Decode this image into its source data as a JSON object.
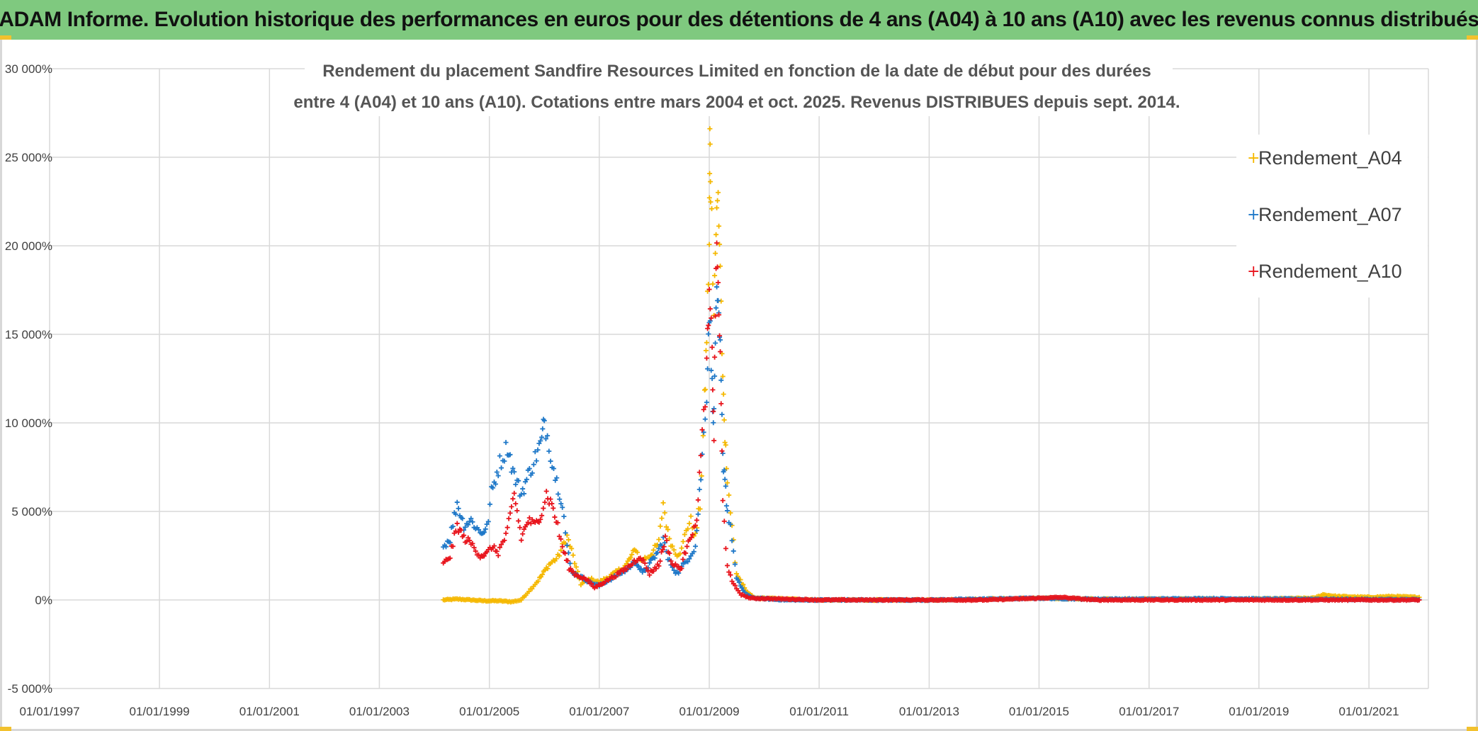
{
  "header": {
    "title": "ADAM Informe. Evolution historique des performances en euros pour des détentions de 4 ans (A04) à 10 ans (A10) avec les revenus connus distribués"
  },
  "colors": {
    "header_bg": "#7fc97f",
    "A04": "#f5b800",
    "A07": "#1f78c8",
    "A10": "#e8141c",
    "grid": "#d9d9d9"
  },
  "chart_data": {
    "type": "scatter",
    "title_lines": [
      "Rendement du placement Sandfire Resources Limited en fonction de la date de début pour des durées",
      "entre 4 (A04) et 10 ans (A10). Cotations entre mars 2004 et oct. 2025. Revenus DISTRIBUES depuis sept. 2014."
    ],
    "xlabel": "",
    "ylabel": "",
    "x_range": [
      "1997-01-01",
      "2022-01-31"
    ],
    "x_ticks": [
      "01/01/1997",
      "01/01/1999",
      "01/01/2001",
      "01/01/2003",
      "01/01/2005",
      "01/01/2007",
      "01/01/2009",
      "01/01/2011",
      "01/01/2013",
      "01/01/2015",
      "01/01/2017",
      "01/01/2019",
      "01/01/2021"
    ],
    "y_range": [
      -5000,
      30000
    ],
    "y_ticks": [
      "-5 000%",
      "0%",
      "5 000%",
      "10 000%",
      "15 000%",
      "20 000%",
      "25 000%",
      "30 000%"
    ],
    "y_tick_values": [
      -5000,
      0,
      5000,
      10000,
      15000,
      20000,
      25000,
      30000
    ],
    "grid": true,
    "legend_position": "top-right",
    "series": [
      {
        "name": "Rendement_A04",
        "color": "#f5b800",
        "points": [
          [
            "2004-03-01",
            0
          ],
          [
            "2004-06-01",
            50
          ],
          [
            "2004-09-01",
            0
          ],
          [
            "2004-12-01",
            -50
          ],
          [
            "2005-03-01",
            -50
          ],
          [
            "2005-06-01",
            -100
          ],
          [
            "2005-08-01",
            0
          ],
          [
            "2005-10-01",
            600
          ],
          [
            "2005-12-01",
            1200
          ],
          [
            "2006-02-01",
            2000
          ],
          [
            "2006-04-01",
            2400
          ],
          [
            "2006-05-01",
            3000
          ],
          [
            "2006-06-01",
            3600
          ],
          [
            "2006-07-01",
            2800
          ],
          [
            "2006-08-01",
            1800
          ],
          [
            "2006-09-01",
            900
          ],
          [
            "2006-11-01",
            1200
          ],
          [
            "2007-01-01",
            1000
          ],
          [
            "2007-03-01",
            1300
          ],
          [
            "2007-05-01",
            1600
          ],
          [
            "2007-07-01",
            2000
          ],
          [
            "2007-09-01",
            2900
          ],
          [
            "2007-10-01",
            2200
          ],
          [
            "2007-12-01",
            2500
          ],
          [
            "2008-02-01",
            3200
          ],
          [
            "2008-03-01",
            5500
          ],
          [
            "2008-04-01",
            3800
          ],
          [
            "2008-05-01",
            3000
          ],
          [
            "2008-06-01",
            2600
          ],
          [
            "2008-07-01",
            2800
          ],
          [
            "2008-08-01",
            4000
          ],
          [
            "2008-09-01",
            4500
          ],
          [
            "2008-10-01",
            3500
          ],
          [
            "2008-11-01",
            5500
          ],
          [
            "2008-12-01",
            11000
          ],
          [
            "2008-12-15",
            15000
          ],
          [
            "2009-01-01",
            20000
          ],
          [
            "2009-01-05",
            26000
          ],
          [
            "2009-01-10",
            23500
          ],
          [
            "2009-02-01",
            17000
          ],
          [
            "2009-02-15",
            21000
          ],
          [
            "2009-03-01",
            22800
          ],
          [
            "2009-03-15",
            19000
          ],
          [
            "2009-04-01",
            12000
          ],
          [
            "2009-04-15",
            9000
          ],
          [
            "2009-05-01",
            7000
          ],
          [
            "2009-06-01",
            4000
          ],
          [
            "2009-07-01",
            1500
          ],
          [
            "2009-09-01",
            500
          ],
          [
            "2009-11-01",
            100
          ],
          [
            "2010-01-01",
            100
          ],
          [
            "2010-06-01",
            50
          ],
          [
            "2011-01-01",
            0
          ],
          [
            "2012-01-01",
            0
          ],
          [
            "2013-01-01",
            0
          ],
          [
            "2014-01-01",
            50
          ],
          [
            "2015-01-01",
            100
          ],
          [
            "2016-01-01",
            50
          ],
          [
            "2017-01-01",
            50
          ],
          [
            "2018-01-01",
            50
          ],
          [
            "2019-01-01",
            50
          ],
          [
            "2020-01-01",
            100
          ],
          [
            "2020-03-01",
            300
          ],
          [
            "2020-06-01",
            200
          ],
          [
            "2021-01-01",
            150
          ],
          [
            "2021-06-01",
            200
          ],
          [
            "2021-12-01",
            150
          ]
        ]
      },
      {
        "name": "Rendement_A07",
        "color": "#1f78c8",
        "points": [
          [
            "2004-03-01",
            3000
          ],
          [
            "2004-04-15",
            3500
          ],
          [
            "2004-06-01",
            5500
          ],
          [
            "2004-07-15",
            4200
          ],
          [
            "2004-09-01",
            4500
          ],
          [
            "2004-11-01",
            3800
          ],
          [
            "2004-12-15",
            4000
          ],
          [
            "2005-01-15",
            6000
          ],
          [
            "2005-03-01",
            7500
          ],
          [
            "2005-05-01",
            8700
          ],
          [
            "2005-06-15",
            7000
          ],
          [
            "2005-08-01",
            6000
          ],
          [
            "2005-09-15",
            7000
          ],
          [
            "2005-11-01",
            8000
          ],
          [
            "2005-12-15",
            9000
          ],
          [
            "2006-01-01",
            10100
          ],
          [
            "2006-02-01",
            8800
          ],
          [
            "2006-03-15",
            7000
          ],
          [
            "2006-05-01",
            5500
          ],
          [
            "2006-06-01",
            3000
          ],
          [
            "2006-07-01",
            1600
          ],
          [
            "2006-09-01",
            1300
          ],
          [
            "2006-11-01",
            1000
          ],
          [
            "2007-01-01",
            800
          ],
          [
            "2007-03-01",
            1100
          ],
          [
            "2007-05-01",
            1400
          ],
          [
            "2007-07-01",
            1700
          ],
          [
            "2007-09-01",
            2200
          ],
          [
            "2007-10-15",
            1500
          ],
          [
            "2007-12-01",
            2000
          ],
          [
            "2008-02-01",
            2800
          ],
          [
            "2008-03-01",
            3500
          ],
          [
            "2008-04-01",
            2300
          ],
          [
            "2008-06-01",
            1500
          ],
          [
            "2008-08-01",
            2200
          ],
          [
            "2008-10-01",
            3000
          ],
          [
            "2008-11-15",
            8000
          ],
          [
            "2008-12-15",
            12000
          ],
          [
            "2009-01-01",
            16500
          ],
          [
            "2009-01-20",
            12000
          ],
          [
            "2009-02-01",
            10000
          ],
          [
            "2009-02-15",
            17000
          ],
          [
            "2009-03-01",
            16000
          ],
          [
            "2009-03-15",
            14000
          ],
          [
            "2009-04-01",
            8000
          ],
          [
            "2009-04-15",
            7000
          ],
          [
            "2009-05-01",
            5000
          ],
          [
            "2009-06-01",
            3500
          ],
          [
            "2009-07-01",
            1200
          ],
          [
            "2009-09-01",
            300
          ],
          [
            "2009-11-01",
            100
          ],
          [
            "2010-06-01",
            0
          ],
          [
            "2011-01-01",
            0
          ],
          [
            "2012-01-01",
            0
          ],
          [
            "2013-01-01",
            0
          ],
          [
            "2014-01-01",
            50
          ],
          [
            "2015-01-01",
            100
          ],
          [
            "2016-01-01",
            50
          ],
          [
            "2017-01-01",
            50
          ],
          [
            "2018-01-01",
            80
          ],
          [
            "2019-01-01",
            60
          ],
          [
            "2020-01-01",
            50
          ],
          [
            "2021-01-01",
            30
          ],
          [
            "2021-12-01",
            20
          ]
        ]
      },
      {
        "name": "Rendement_A10",
        "color": "#e8141c",
        "points": [
          [
            "2004-03-01",
            2000
          ],
          [
            "2004-04-15",
            2500
          ],
          [
            "2004-06-01",
            4200
          ],
          [
            "2004-07-15",
            3500
          ],
          [
            "2004-09-01",
            3200
          ],
          [
            "2004-11-01",
            2500
          ],
          [
            "2004-12-15",
            2600
          ],
          [
            "2005-01-15",
            3000
          ],
          [
            "2005-03-01",
            2700
          ],
          [
            "2005-05-01",
            3800
          ],
          [
            "2005-06-15",
            6000
          ],
          [
            "2005-08-01",
            3500
          ],
          [
            "2005-09-15",
            4500
          ],
          [
            "2005-11-01",
            4200
          ],
          [
            "2005-12-15",
            5000
          ],
          [
            "2006-01-15",
            6000
          ],
          [
            "2006-03-01",
            5200
          ],
          [
            "2006-05-01",
            3000
          ],
          [
            "2006-06-15",
            1800
          ],
          [
            "2006-08-01",
            1400
          ],
          [
            "2006-10-01",
            1200
          ],
          [
            "2006-12-01",
            700
          ],
          [
            "2007-02-01",
            1000
          ],
          [
            "2007-04-01",
            1300
          ],
          [
            "2007-06-01",
            1600
          ],
          [
            "2007-08-01",
            2000
          ],
          [
            "2007-10-01",
            2500
          ],
          [
            "2007-12-01",
            1500
          ],
          [
            "2008-02-01",
            2000
          ],
          [
            "2008-03-15",
            3500
          ],
          [
            "2008-05-01",
            2000
          ],
          [
            "2008-07-01",
            1800
          ],
          [
            "2008-08-15",
            3500
          ],
          [
            "2008-10-01",
            4000
          ],
          [
            "2008-11-15",
            9000
          ],
          [
            "2008-12-15",
            13000
          ],
          [
            "2009-01-01",
            17000
          ],
          [
            "2009-01-20",
            14000
          ],
          [
            "2009-02-01",
            9500
          ],
          [
            "2009-02-15",
            19500
          ],
          [
            "2009-03-01",
            18000
          ],
          [
            "2009-03-15",
            13500
          ],
          [
            "2009-04-01",
            5500
          ],
          [
            "2009-05-01",
            2000
          ],
          [
            "2009-06-01",
            1000
          ],
          [
            "2009-08-01",
            300
          ],
          [
            "2009-10-01",
            100
          ],
          [
            "2010-06-01",
            50
          ],
          [
            "2011-01-01",
            0
          ],
          [
            "2012-01-01",
            0
          ],
          [
            "2013-01-01",
            0
          ],
          [
            "2014-01-01",
            0
          ],
          [
            "2015-01-01",
            100
          ],
          [
            "2015-06-01",
            150
          ],
          [
            "2016-01-01",
            0
          ],
          [
            "2017-01-01",
            0
          ],
          [
            "2018-01-01",
            0
          ],
          [
            "2019-01-01",
            0
          ],
          [
            "2020-01-01",
            0
          ],
          [
            "2021-01-01",
            0
          ],
          [
            "2021-12-01",
            0
          ]
        ]
      }
    ]
  }
}
